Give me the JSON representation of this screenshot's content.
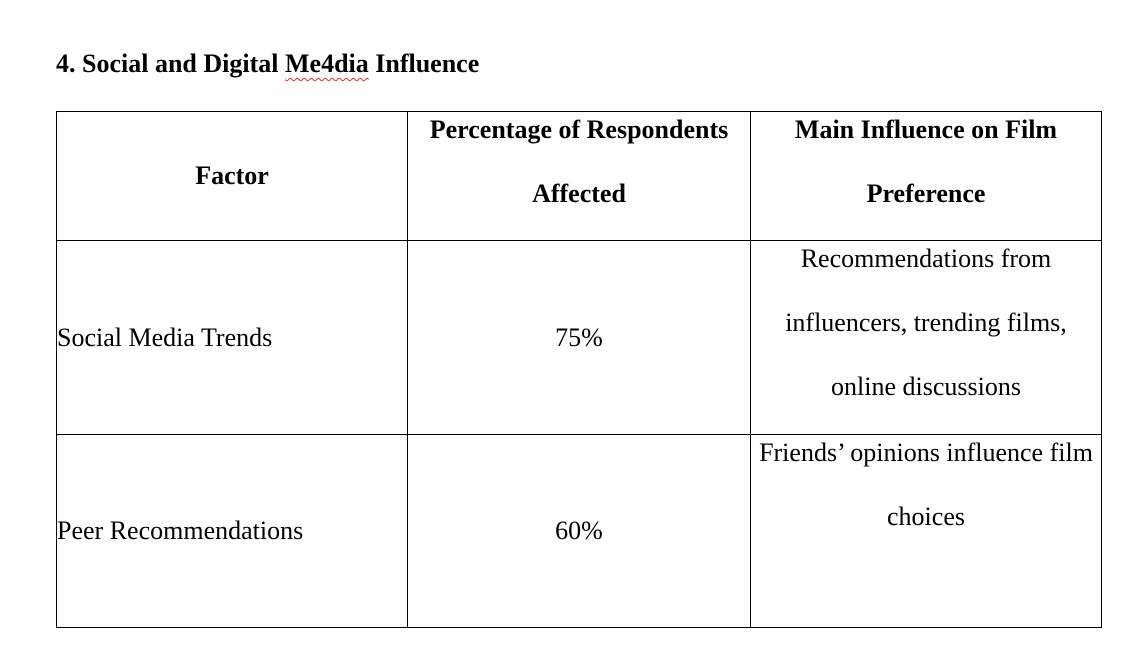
{
  "section": {
    "number": "4.",
    "title_before": "Social and Digital",
    "title_misspelled": "Me4dia",
    "title_after": "Influence"
  },
  "table": {
    "headers": [
      "Factor",
      "Percentage of Respondents Affected",
      "Main Influence on Film Preference"
    ],
    "rows": [
      {
        "factor": "Social Media Trends",
        "percentage": "75%",
        "influence": "Recommendations from influencers, trending films, online discussions"
      },
      {
        "factor": "Peer Recommendations",
        "percentage": "60%",
        "influence": "Friends’ opinions influence film choices"
      }
    ]
  },
  "colors": {
    "text": "#000000",
    "border": "#000000",
    "spellcheck_underline": "#d93025"
  }
}
